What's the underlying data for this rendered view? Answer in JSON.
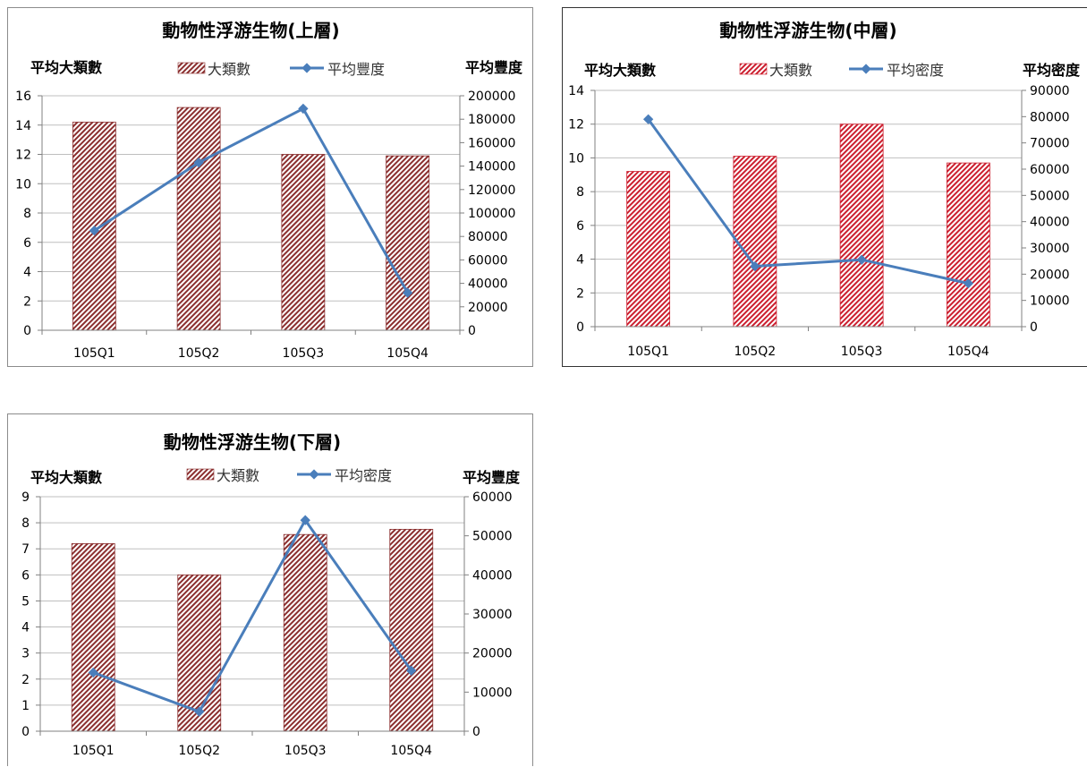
{
  "chart_data": [
    {
      "type": "bar",
      "title": "動物性浮游生物(上層)",
      "ylabel": "平均大類數",
      "y2label": "平均豐度",
      "categories": [
        "105Q1",
        "105Q2",
        "105Q3",
        "105Q4"
      ],
      "ylim": [
        0,
        16
      ],
      "y_ticks": [
        0,
        2,
        4,
        6,
        8,
        10,
        12,
        14,
        16
      ],
      "y2lim": [
        0,
        200000
      ],
      "y2_ticks": [
        0,
        20000,
        40000,
        60000,
        80000,
        100000,
        120000,
        140000,
        160000,
        180000,
        200000
      ],
      "grid": true,
      "legend_position": "top",
      "series": [
        {
          "name": "大類數",
          "type": "bar",
          "axis": "left",
          "values": [
            14.2,
            15.2,
            12.0,
            11.9
          ],
          "color": "#8b2f2f"
        },
        {
          "name": "平均豐度",
          "type": "line",
          "axis": "right",
          "values": [
            85000,
            143000,
            189000,
            32000
          ],
          "color": "#4a7ebb"
        }
      ]
    },
    {
      "type": "bar",
      "title": "動物性浮游生物(中層)",
      "ylabel": "平均大類數",
      "y2label": "平均密度",
      "categories": [
        "105Q1",
        "105Q2",
        "105Q3",
        "105Q4"
      ],
      "ylim": [
        0,
        14
      ],
      "y_ticks": [
        0,
        2,
        4,
        6,
        8,
        10,
        12,
        14
      ],
      "y2lim": [
        0,
        90000
      ],
      "y2_ticks": [
        0,
        10000,
        20000,
        30000,
        40000,
        50000,
        60000,
        70000,
        80000,
        90000
      ],
      "grid": true,
      "legend_position": "top",
      "series": [
        {
          "name": "大類數",
          "type": "bar",
          "axis": "left",
          "values": [
            9.2,
            10.1,
            12.0,
            9.7
          ],
          "color": "#cc1f2f"
        },
        {
          "name": "平均密度",
          "type": "line",
          "axis": "right",
          "values": [
            79000,
            23000,
            25500,
            16500
          ],
          "color": "#4a7ebb"
        }
      ]
    },
    {
      "type": "bar",
      "title": "動物性浮游生物(下層)",
      "ylabel": "平均大類數",
      "y2label": "平均豐度",
      "categories": [
        "105Q1",
        "105Q2",
        "105Q3",
        "105Q4"
      ],
      "ylim": [
        0,
        9
      ],
      "y_ticks": [
        0,
        1,
        2,
        3,
        4,
        5,
        6,
        7,
        8,
        9
      ],
      "y2lim": [
        0,
        60000
      ],
      "y2_ticks": [
        0,
        10000,
        20000,
        30000,
        40000,
        50000,
        60000
      ],
      "grid": true,
      "legend_position": "top",
      "series": [
        {
          "name": "大類數",
          "type": "bar",
          "axis": "left",
          "values": [
            7.2,
            6.0,
            7.55,
            7.75
          ],
          "color": "#8b2f2f"
        },
        {
          "name": "平均密度",
          "type": "line",
          "axis": "right",
          "values": [
            15000,
            5000,
            54000,
            15500
          ],
          "color": "#4a7ebb"
        }
      ]
    }
  ]
}
